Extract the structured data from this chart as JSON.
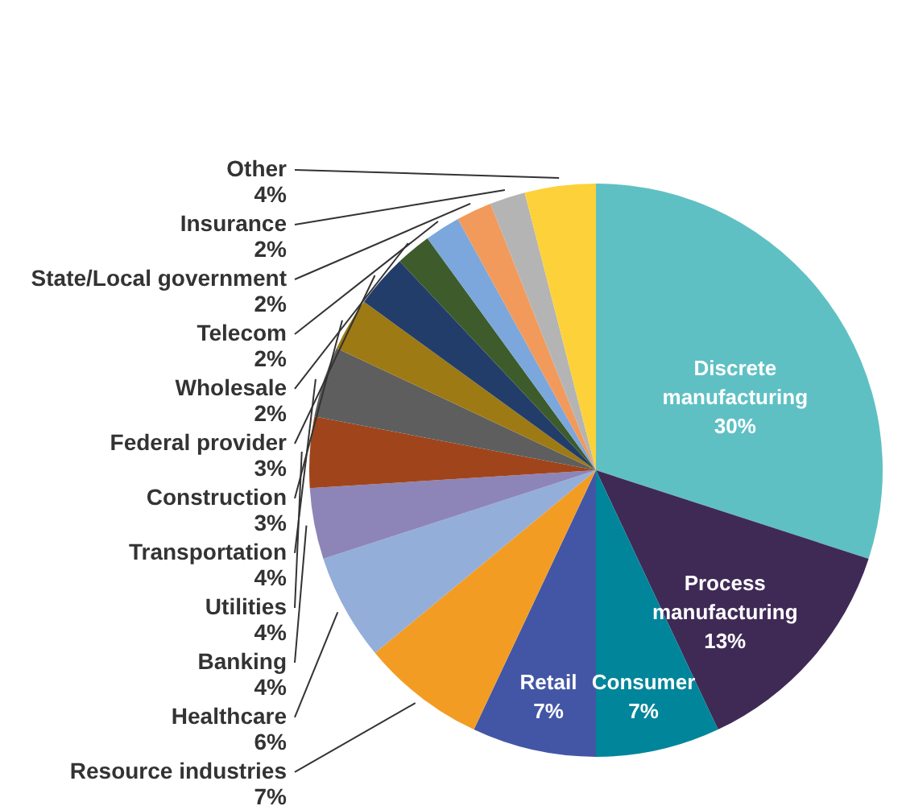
{
  "chart_data": {
    "type": "pie",
    "categories": [
      "Discrete manufacturing",
      "Process manufacturing",
      "Consumer",
      "Retail",
      "Resource industries",
      "Healthcare",
      "Banking",
      "Utilities",
      "Transportation",
      "Construction",
      "Federal provider",
      "Wholesale",
      "Telecom",
      "State/Local government",
      "Insurance",
      "Other"
    ],
    "values": [
      30,
      13,
      7,
      7,
      7,
      6,
      4,
      4,
      4,
      3,
      3,
      2,
      2,
      2,
      2,
      4
    ],
    "value_labels": [
      "30%",
      "13%",
      "7%",
      "7%",
      "7%",
      "6%",
      "4%",
      "4%",
      "4%",
      "3%",
      "3%",
      "2%",
      "2%",
      "2%",
      "2%",
      "4%"
    ],
    "colors": [
      "#5fc0c4",
      "#3f2a56",
      "#00859b",
      "#4356a6",
      "#f39c24",
      "#93aed9",
      "#8d85b8",
      "#a0451b",
      "#5e5e5e",
      "#9d7a14",
      "#233d6a",
      "#3e5b2c",
      "#7ba7dc",
      "#f19a5c",
      "#b4b4b4",
      "#fdd13a"
    ]
  }
}
